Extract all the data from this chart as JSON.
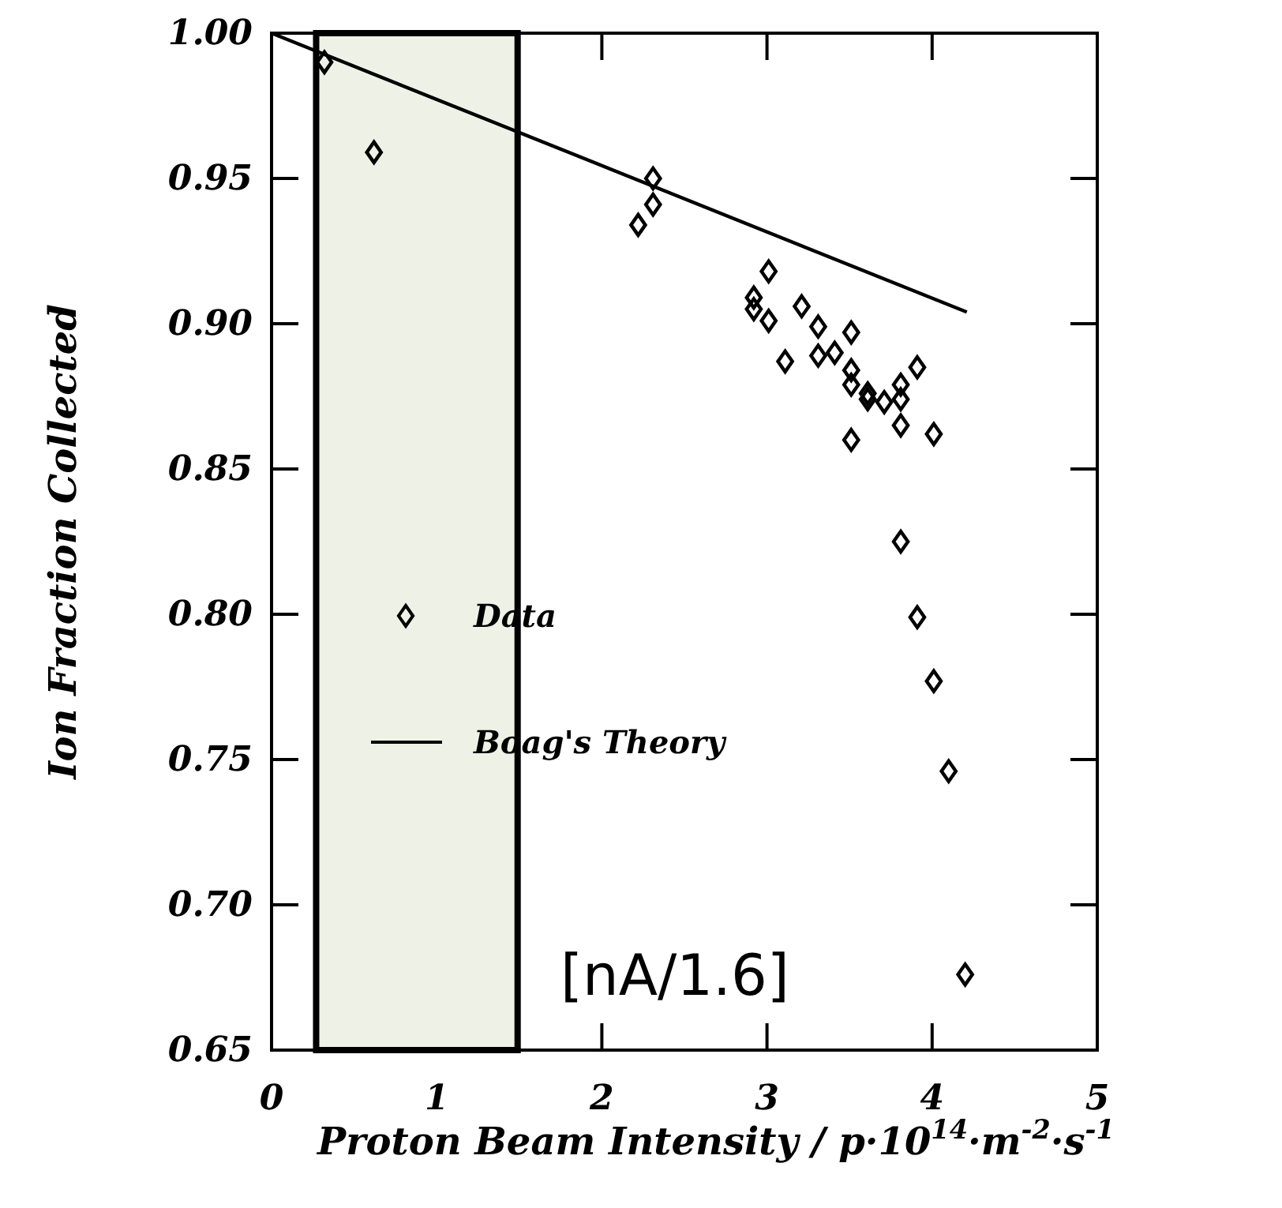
{
  "chart_data": {
    "type": "scatter",
    "xlabel": "Proton Beam Intensity / p·10$^{14}$·m$^{-2}$·s$^{-1}$",
    "ylabel": "Ion Fraction Collected",
    "xlim": [
      0,
      5
    ],
    "ylim": [
      0.65,
      1.0
    ],
    "xticks": [
      0,
      1,
      2,
      3,
      4,
      5
    ],
    "yticks": [
      {
        "value": 0.65,
        "label": "0.65"
      },
      {
        "value": 0.7,
        "label": "0.70"
      },
      {
        "value": 0.75,
        "label": "0.75"
      },
      {
        "value": 0.8,
        "label": "0.80"
      },
      {
        "value": 0.85,
        "label": "0.85"
      },
      {
        "value": 0.9,
        "label": "0.90"
      },
      {
        "value": 0.95,
        "label": "0.95"
      },
      {
        "value": 1.0,
        "label": "1.00"
      }
    ],
    "legend": "left",
    "grid": false,
    "series": [
      {
        "name": "Data",
        "marker": "diamond",
        "color": "#000000",
        "x": [
          0.32,
          0.62,
          2.31,
          2.31,
          2.22,
          3.01,
          2.92,
          2.92,
          3.01,
          3.21,
          3.31,
          3.51,
          3.11,
          3.31,
          3.41,
          3.51,
          3.51,
          3.61,
          3.61,
          3.71,
          3.81,
          3.81,
          3.91,
          3.81,
          3.51,
          4.01,
          3.81,
          3.91,
          4.01,
          4.1,
          4.2
        ],
        "values": [
          0.99,
          0.959,
          0.95,
          0.941,
          0.934,
          0.918,
          0.909,
          0.905,
          0.901,
          0.906,
          0.899,
          0.897,
          0.887,
          0.889,
          0.89,
          0.884,
          0.879,
          0.876,
          0.874,
          0.873,
          0.879,
          0.874,
          0.885,
          0.865,
          0.86,
          0.862,
          0.825,
          0.799,
          0.777,
          0.746,
          0.676
        ]
      },
      {
        "name": "Boag's Theory",
        "type": "line",
        "marker": "none",
        "color": "#000000",
        "x": [
          0,
          4.21
        ],
        "values": [
          1.0,
          0.904
        ]
      }
    ],
    "bands": [
      {
        "axis": "x",
        "from": 0.27,
        "to": 1.49,
        "color": "#eef2e6"
      }
    ],
    "annotations": [
      "[nA/1.6]"
    ]
  }
}
